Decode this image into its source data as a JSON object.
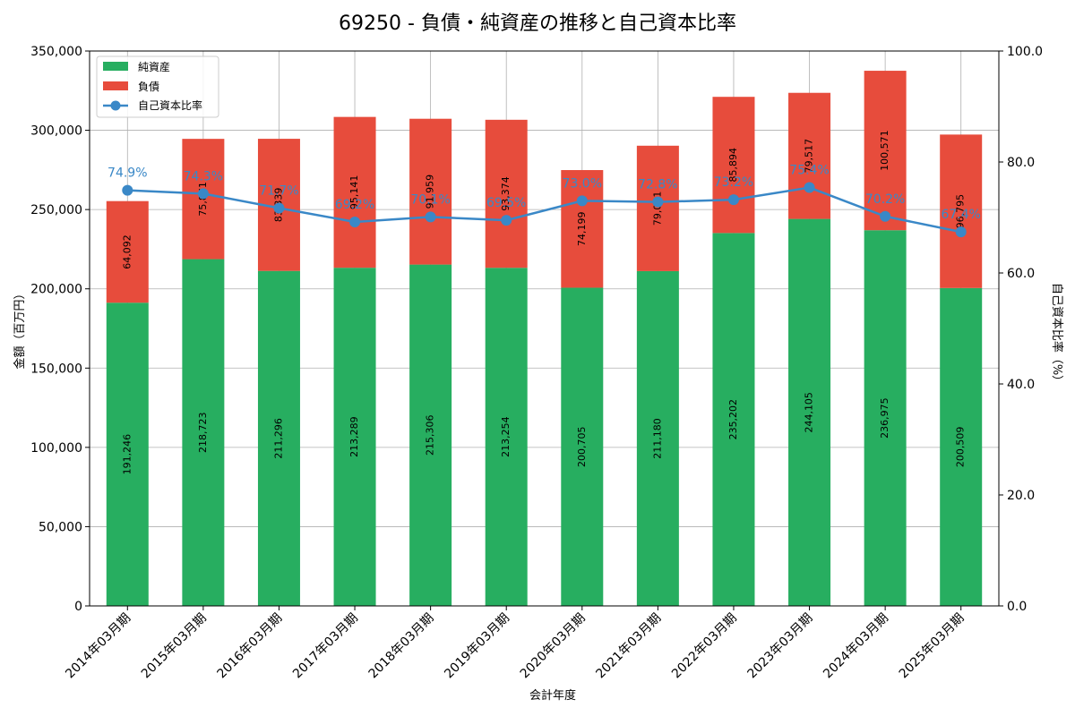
{
  "chart_data": {
    "type": "bar",
    "title": "69250 - 負債・純資産の推移と自己資本比率",
    "xlabel": "会計年度",
    "ylabel_left": "金額（百万円）",
    "ylabel_right": "自己資本比率（%）",
    "ylim_left": [
      0,
      350000
    ],
    "ylim_right": [
      0,
      100
    ],
    "yticks_left": [
      "0",
      "50,000",
      "100,000",
      "150,000",
      "200,000",
      "250,000",
      "300,000",
      "350,000"
    ],
    "yticks_right": [
      "0.0",
      "20.0",
      "40.0",
      "60.0",
      "80.0",
      "100.0"
    ],
    "grid": true,
    "legend_position": "top-left",
    "categories": [
      "2014年03月期",
      "2015年03月期",
      "2016年03月期",
      "2017年03月期",
      "2018年03月期",
      "2019年03月期",
      "2020年03月期",
      "2021年03月期",
      "2022年03月期",
      "2023年03月期",
      "2024年03月期",
      "2025年03月期"
    ],
    "series": [
      {
        "name": "純資産",
        "color": "#27ae60",
        "values": [
          191246,
          218723,
          211296,
          213289,
          215306,
          213254,
          200705,
          211180,
          235202,
          244105,
          236975,
          200509
        ],
        "labels": [
          "191,246",
          "218,723",
          "211,296",
          "213,289",
          "215,306",
          "213,254",
          "200,705",
          "211,180",
          "235,202",
          "244,105",
          "236,975",
          "200,509"
        ]
      },
      {
        "name": "負債",
        "color": "#e74c3c",
        "values": [
          64092,
          75871,
          83339,
          95141,
          91959,
          93374,
          74199,
          79091,
          85894,
          79517,
          100571,
          96795
        ],
        "labels": [
          "64,092",
          "75,871",
          "83,339",
          "95,141",
          "91,959",
          "93,374",
          "74,199",
          "79,091",
          "85,894",
          "79,517",
          "100,571",
          "96,795"
        ]
      },
      {
        "name": "自己資本比率",
        "color": "#3a88c7",
        "type": "line",
        "values": [
          74.9,
          74.3,
          71.7,
          69.2,
          70.1,
          69.5,
          73.0,
          72.8,
          73.2,
          75.4,
          70.2,
          67.4
        ],
        "labels": [
          "74.9%",
          "74.3%",
          "71.7%",
          "69.2%",
          "70.1%",
          "69.5%",
          "73.0%",
          "72.8%",
          "73.2%",
          "75.4%",
          "70.2%",
          "67.4%"
        ]
      }
    ]
  }
}
